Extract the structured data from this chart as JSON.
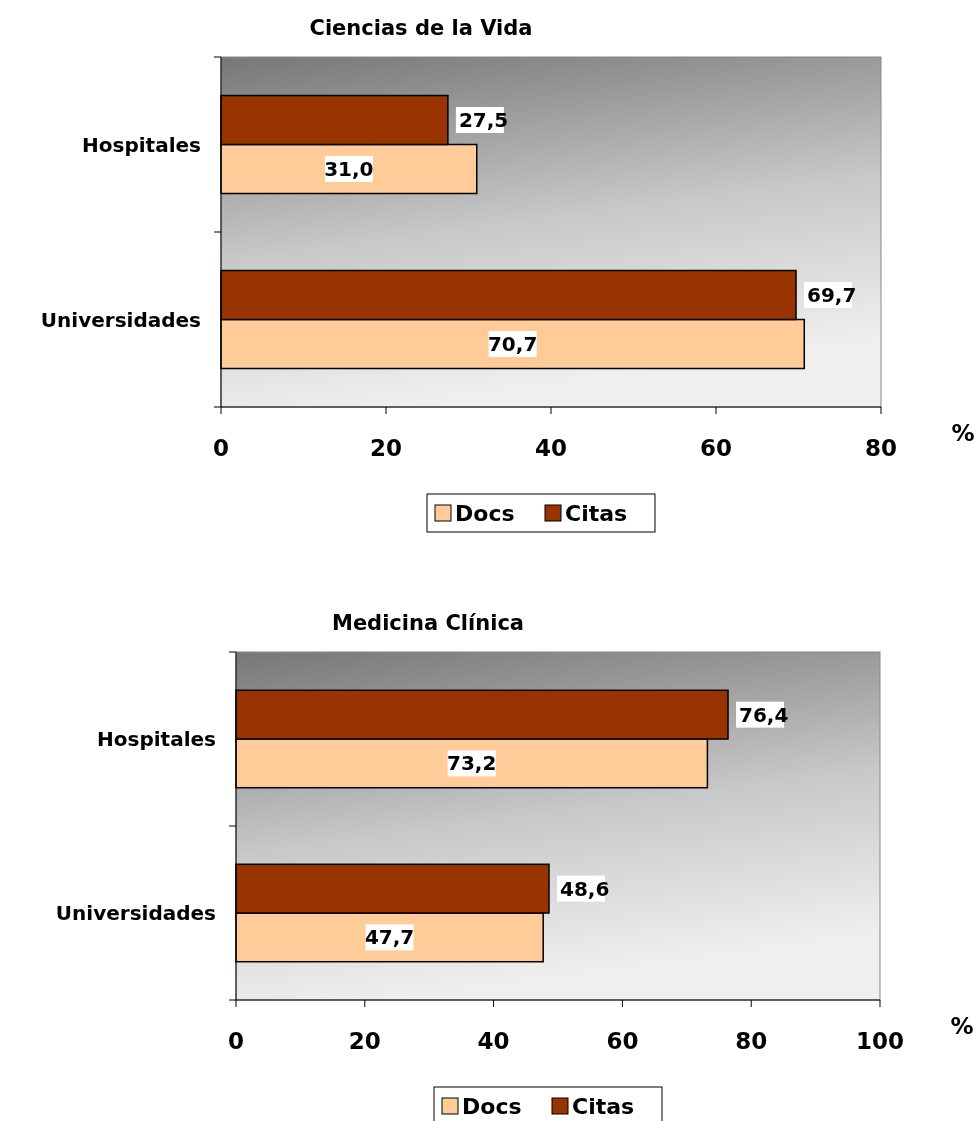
{
  "chart_data": [
    {
      "type": "bar",
      "orientation": "horizontal",
      "title": "Ciencias de la Vida",
      "xlabel": "%",
      "categories": [
        "Hospitales",
        "Universidades"
      ],
      "series": [
        {
          "name": "Docs",
          "color": "#ffcc99",
          "values": [
            31.0,
            70.7
          ],
          "value_labels": [
            "31,0",
            "70,7"
          ]
        },
        {
          "name": "Citas",
          "color": "#993300",
          "values": [
            27.5,
            69.7
          ],
          "value_labels": [
            "27,5",
            "69,7"
          ]
        }
      ],
      "xlim": [
        0,
        80
      ],
      "xticks": [
        0,
        20,
        40,
        60,
        80
      ],
      "legend": "bottom",
      "grid": false
    },
    {
      "type": "bar",
      "orientation": "horizontal",
      "title": "Medicina Clínica",
      "xlabel": "%",
      "categories": [
        "Hospitales",
        "Universidades"
      ],
      "series": [
        {
          "name": "Docs",
          "color": "#ffcc99",
          "values": [
            73.2,
            47.7
          ],
          "value_labels": [
            "73,2",
            "47,7"
          ]
        },
        {
          "name": "Citas",
          "color": "#993300",
          "values": [
            76.4,
            48.6
          ],
          "value_labels": [
            "76,4",
            "48,6"
          ]
        }
      ],
      "xlim": [
        0,
        100
      ],
      "xticks": [
        0,
        20,
        40,
        60,
        80,
        100
      ],
      "legend": "bottom",
      "grid": false
    }
  ]
}
